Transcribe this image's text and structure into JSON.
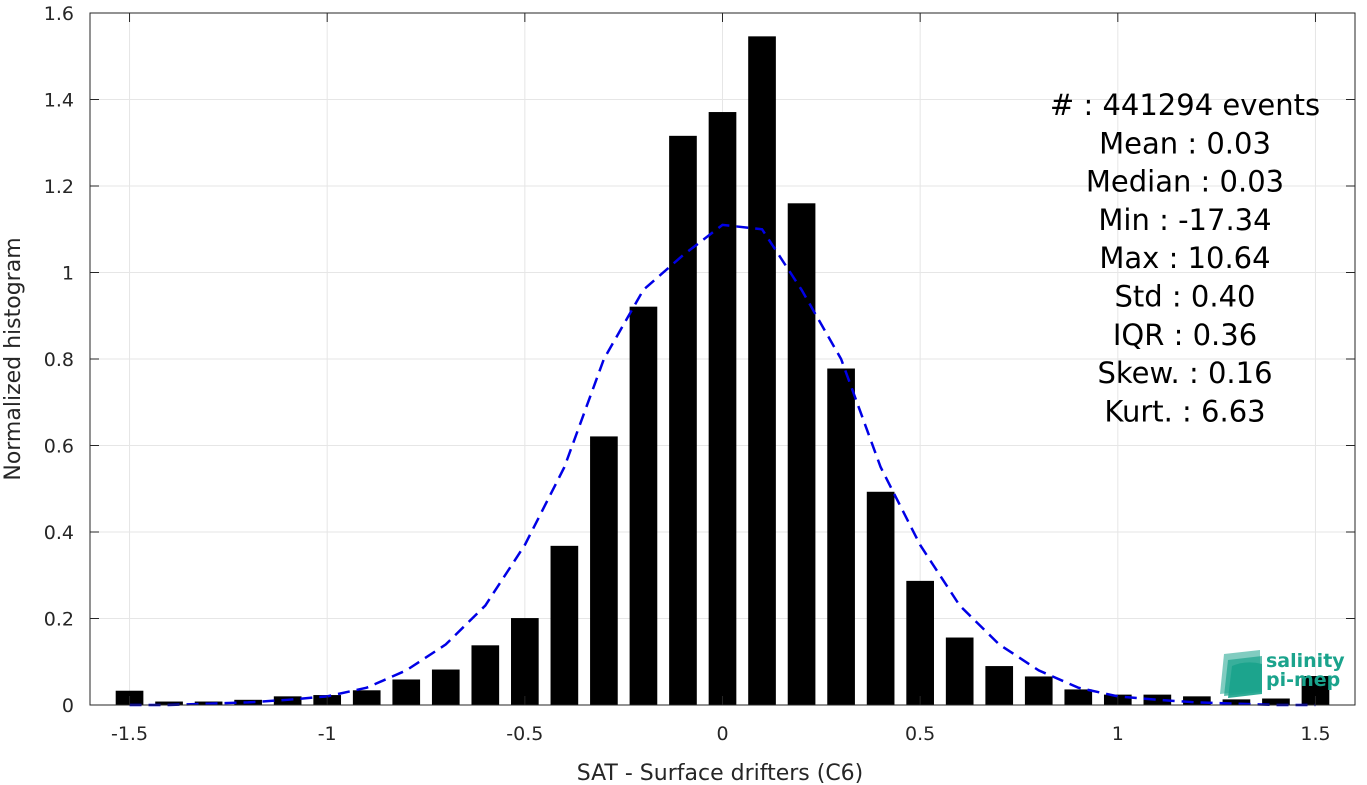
{
  "chart_data": {
    "type": "bar",
    "xlabel": "SAT - Surface drifters (C6)",
    "ylabel": "Normalized histogram",
    "xlim": [
      -1.6,
      1.6
    ],
    "ylim": [
      0,
      1.6
    ],
    "xticks": [
      -1.5,
      -1,
      -0.5,
      0,
      0.5,
      1,
      1.5
    ],
    "xtick_labels": [
      "-1.5",
      "-1",
      "-0.5",
      "0",
      "0.5",
      "1",
      "1.5"
    ],
    "yticks": [
      0,
      0.2,
      0.4,
      0.6,
      0.8,
      1,
      1.2,
      1.4,
      1.6
    ],
    "ytick_labels": [
      "0",
      "0.2",
      "0.4",
      "0.6",
      "0.8",
      "1",
      "1.2",
      "1.4",
      "1.6"
    ],
    "grid": true,
    "bar_width": 0.07,
    "bar_color": "#000000",
    "bars": {
      "x": [
        -1.5,
        -1.4,
        -1.3,
        -1.2,
        -1.1,
        -1.0,
        -0.9,
        -0.8,
        -0.7,
        -0.6,
        -0.5,
        -0.4,
        -0.3,
        -0.2,
        -0.1,
        0.0,
        0.1,
        0.2,
        0.3,
        0.4,
        0.5,
        0.6,
        0.7,
        0.8,
        0.9,
        1.0,
        1.1,
        1.2,
        1.3,
        1.4,
        1.5
      ],
      "values": [
        0.033,
        0.008,
        0.008,
        0.012,
        0.02,
        0.023,
        0.034,
        0.059,
        0.082,
        0.138,
        0.201,
        0.368,
        0.621,
        0.921,
        1.316,
        1.371,
        1.546,
        1.16,
        0.778,
        0.493,
        0.287,
        0.156,
        0.09,
        0.066,
        0.036,
        0.024,
        0.024,
        0.02,
        0.013,
        0.015,
        0.067
      ]
    },
    "fit_curve": {
      "style": "dashed",
      "color": "#0000e6",
      "x": [
        -1.5,
        -1.4,
        -1.3,
        -1.2,
        -1.1,
        -1.0,
        -0.9,
        -0.8,
        -0.7,
        -0.6,
        -0.5,
        -0.4,
        -0.3,
        -0.2,
        -0.1,
        0.0,
        0.1,
        0.2,
        0.3,
        0.4,
        0.5,
        0.6,
        0.7,
        0.8,
        0.9,
        1.0,
        1.1,
        1.2,
        1.3,
        1.4,
        1.5
      ],
      "values": [
        0.0,
        0.0,
        0.003,
        0.006,
        0.012,
        0.02,
        0.04,
        0.08,
        0.14,
        0.23,
        0.37,
        0.55,
        0.8,
        0.96,
        1.04,
        1.11,
        1.1,
        0.96,
        0.8,
        0.55,
        0.37,
        0.23,
        0.14,
        0.08,
        0.04,
        0.02,
        0.012,
        0.006,
        0.003,
        0.0,
        0.0
      ]
    },
    "stats": [
      {
        "label": "#",
        "sep": ":",
        "value": "441294 events"
      },
      {
        "label": "Mean",
        "sep": ":",
        "value": "0.03"
      },
      {
        "label": "Median",
        "sep": ":",
        "value": "0.03"
      },
      {
        "label": "Min",
        "sep": ":",
        "value": "-17.34"
      },
      {
        "label": "Max",
        "sep": ":",
        "value": "10.64"
      },
      {
        "label": "Std",
        "sep": ":",
        "value": "0.40"
      },
      {
        "label": "IQR",
        "sep": ":",
        "value": "0.36"
      },
      {
        "label": "Skew.",
        "sep": ":",
        "value": "0.16"
      },
      {
        "label": "Kurt.",
        "sep": ":",
        "value": "6.63"
      }
    ]
  },
  "logo": {
    "line1": "salinity",
    "line2": "pi-mep",
    "color": "#1aa38c"
  }
}
